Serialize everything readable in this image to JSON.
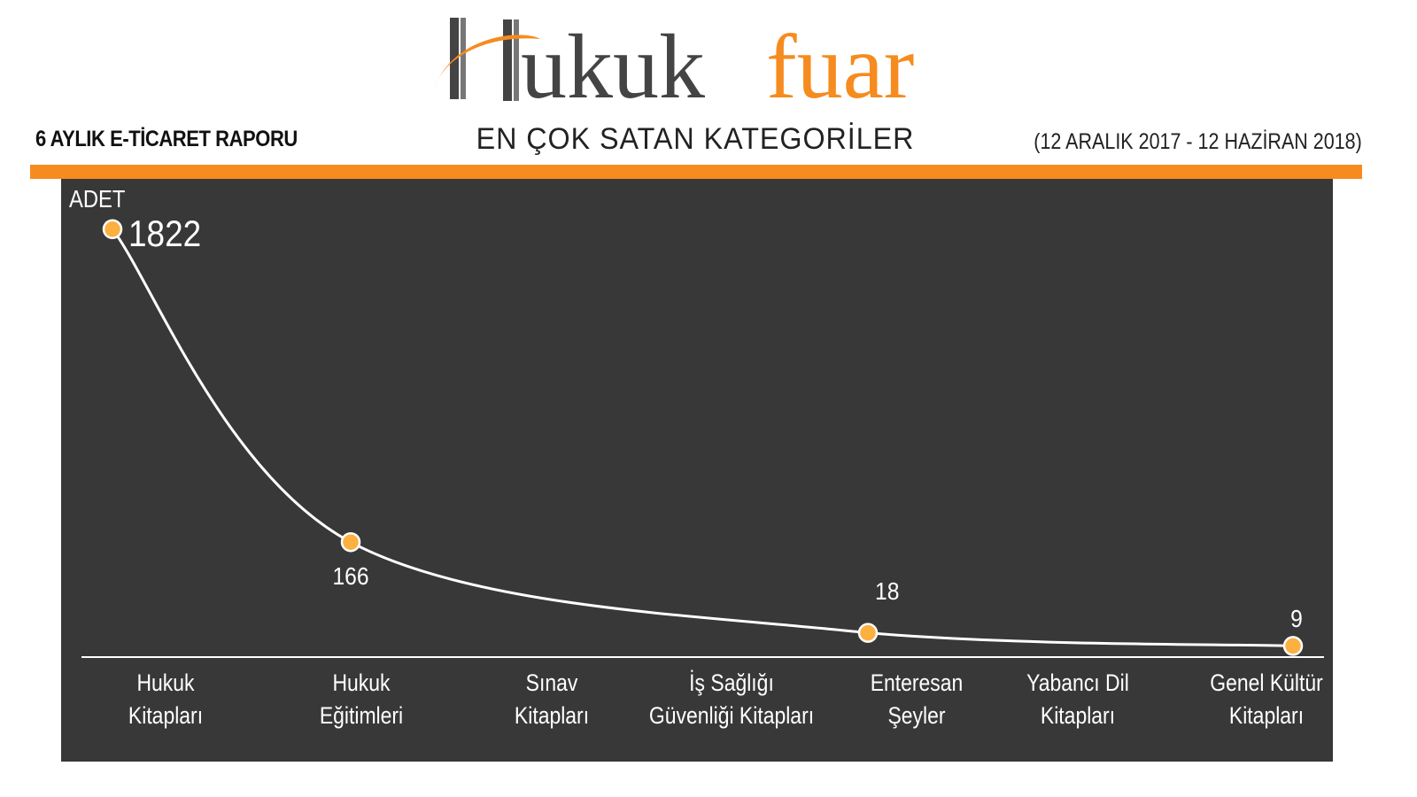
{
  "logo": {
    "text_dark": "Hukuk",
    "text_orange": "fuar"
  },
  "header": {
    "left": "6 AYLIK E-TİCARET RAPORU",
    "center": "EN ÇOK SATAN KATEGORİLER",
    "right": "(12 ARALIK 2017 - 12 HAZİRAN 2018)"
  },
  "colors": {
    "accent": "#f68b1f",
    "panel": "#383838",
    "point": "#fbb040",
    "line": "#ffffff",
    "logo_dark": "#444444"
  },
  "chart_data": {
    "type": "line",
    "ylabel": "ADET",
    "categories": [
      [
        "Hukuk",
        "Kitapları"
      ],
      [
        "Hukuk",
        "Eğitimleri"
      ],
      [
        "Sınav",
        "Kitapları"
      ],
      [
        "İş Sağlığı",
        "Güvenliği Kitapları"
      ],
      [
        "Enteresan",
        "Şeyler"
      ],
      [
        "Yabancı Dil",
        "Kitapları"
      ],
      [
        "Genel Kültür",
        "Kitapları"
      ]
    ],
    "values": [
      1822,
      166,
      null,
      null,
      18,
      null,
      9
    ],
    "value_labels": [
      "1822",
      "166",
      null,
      null,
      "18",
      null,
      "9"
    ],
    "grid": false
  }
}
